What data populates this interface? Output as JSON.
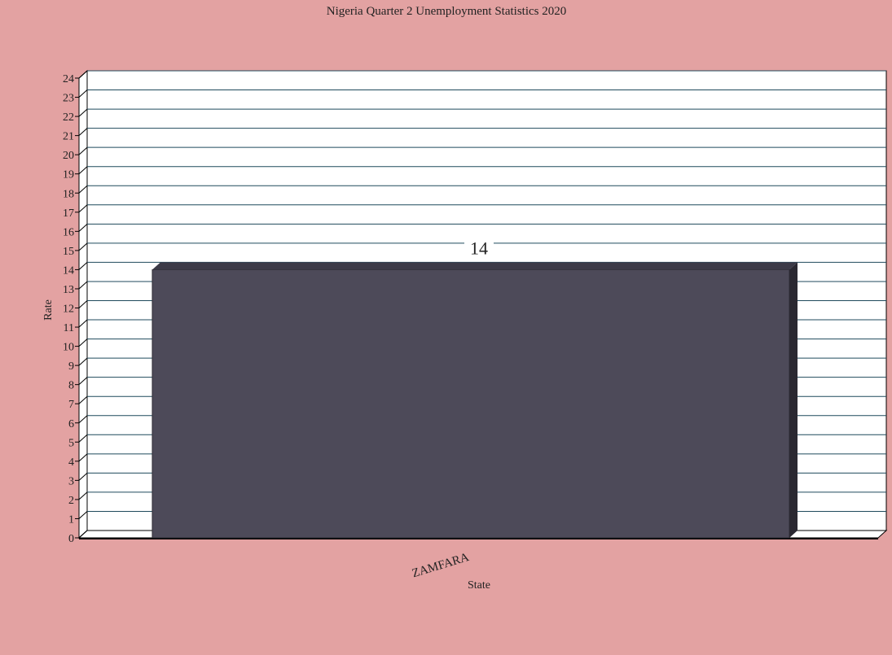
{
  "chart_data": {
    "type": "bar",
    "title": "Nigeria Quarter 2 Unemployment Statistics 2020",
    "xlabel": "State",
    "ylabel": "Rate",
    "categories": [
      "ZAMFARA"
    ],
    "series": [
      {
        "values": [
          14
        ]
      }
    ],
    "data_labels": [
      "14"
    ],
    "ylim": [
      0,
      24
    ],
    "y_ticks": [
      "0",
      "1",
      "2",
      "3",
      "4",
      "5",
      "6",
      "7",
      "8",
      "9",
      "10",
      "11",
      "12",
      "13",
      "14",
      "15",
      "16",
      "17",
      "18",
      "19",
      "20",
      "21",
      "22",
      "23",
      "24"
    ],
    "grid": true,
    "style_3d": true,
    "colors": {
      "background": "#e3a2a2",
      "plot_area": "#ffffff",
      "gridline": "#1f4a5c",
      "bar_front": "#4d4a59",
      "bar_top": "#3c3a47",
      "bar_side": "#2a2831"
    }
  }
}
